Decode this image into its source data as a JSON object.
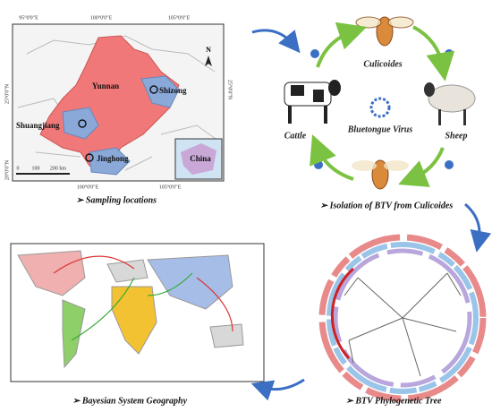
{
  "map_panel": {
    "top_ticks": [
      "95°0'0\"E",
      "100°0'0\"E",
      "105°0'0\"E"
    ],
    "bottom_ticks": [
      "100°0'0\"E",
      "105°0'0\"E"
    ],
    "left_ticks": [
      "25°0'0\"N",
      "20°0'0\"N"
    ],
    "right_tick": "25°0'0\"N",
    "north": "N",
    "province": "Yunnan",
    "sites": [
      "Shizong",
      "Shuangjiang",
      "Jinghong"
    ],
    "inset": "China",
    "scale": [
      "0",
      "100",
      "200 km"
    ],
    "caption": "➢ Sampling locations"
  },
  "cycle_panel": {
    "vector": "Culicoides",
    "host_left": "Cattle",
    "host_right": "Sheep",
    "virus": "Bluetongue Virus",
    "caption": "➢ Isolation of BTV from Culicoides"
  },
  "tree_panel": {
    "caption": "➢ BTV Phylogenetic Tree"
  },
  "world_panel": {
    "caption": "➢ Bayesian System Geography"
  }
}
